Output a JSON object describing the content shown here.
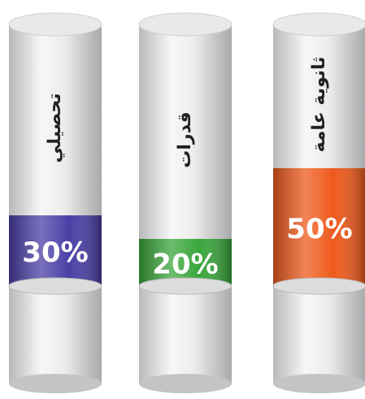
{
  "chart_data": {
    "type": "cylinder",
    "categories": [
      "تحصيلي",
      "قدرات",
      "ثانوية عامة"
    ],
    "values": [
      30,
      20,
      50
    ],
    "value_labels": [
      "30%",
      "20%",
      "50%"
    ],
    "colors": [
      "#4b3fa6",
      "#3aa63c",
      "#ee5a1c"
    ]
  }
}
